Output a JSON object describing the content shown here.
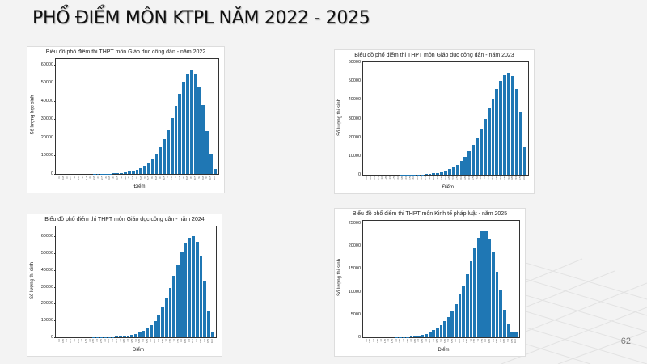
{
  "slide": {
    "title": "PHỔ ĐIỂM MÔN KTPL NĂM 2022 - 2025",
    "page_number": "62"
  },
  "chart_data": [
    {
      "type": "bar",
      "title": "Biểu đồ phổ điểm thi THPT môn Giáo dục công dân - năm 2022",
      "xlabel": "Điểm",
      "ylabel": "Số lượng học sinh",
      "ylim": [
        0,
        63000
      ],
      "yticks": [
        0,
        10000,
        20000,
        30000,
        40000,
        50000,
        60000
      ],
      "color": "#1f77b4",
      "categories": [
        "0.0",
        "0.25",
        "0.5",
        "0.75",
        "1.0",
        "1.25",
        "1.5",
        "1.75",
        "2.0",
        "2.25",
        "2.5",
        "2.75",
        "3.0",
        "3.25",
        "3.5",
        "3.75",
        "4.0",
        "4.25",
        "4.5",
        "4.75",
        "5.0",
        "5.25",
        "5.5",
        "5.75",
        "6.0",
        "6.25",
        "6.5",
        "6.75",
        "7.0",
        "7.25",
        "7.5",
        "7.75",
        "8.0",
        "8.25",
        "8.5",
        "8.75",
        "9.0",
        "9.25",
        "9.5",
        "9.75",
        "10.0"
      ],
      "values": [
        20,
        10,
        10,
        10,
        10,
        10,
        10,
        20,
        30,
        40,
        60,
        80,
        120,
        180,
        260,
        380,
        550,
        800,
        1200,
        1700,
        2300,
        3200,
        4500,
        6200,
        8200,
        11000,
        14800,
        19100,
        24000,
        30500,
        37200,
        44100,
        50800,
        55200,
        57400,
        55100,
        48000,
        37700,
        23700,
        11300,
        2800
      ]
    },
    {
      "type": "bar",
      "title": "Biểu đồ phổ điểm thi THPT môn Giáo dục công dân - năm 2023",
      "xlabel": "Điểm",
      "ylabel": "Số lượng thí sinh",
      "ylim": [
        0,
        60000
      ],
      "yticks": [
        0,
        10000,
        20000,
        30000,
        40000,
        50000,
        60000
      ],
      "color": "#1f77b4",
      "categories": [
        "0.0",
        "0.25",
        "0.5",
        "0.75",
        "1.0",
        "1.25",
        "1.5",
        "1.75",
        "2.0",
        "2.25",
        "2.5",
        "2.75",
        "3.0",
        "3.25",
        "3.5",
        "3.75",
        "4.0",
        "4.25",
        "4.5",
        "4.75",
        "5.0",
        "5.25",
        "5.5",
        "5.75",
        "6.0",
        "6.25",
        "6.5",
        "6.75",
        "7.0",
        "7.25",
        "7.5",
        "7.75",
        "8.0",
        "8.25",
        "8.5",
        "8.75",
        "9.0",
        "9.25",
        "9.5",
        "9.75",
        "10.0"
      ],
      "values": [
        20,
        10,
        10,
        10,
        10,
        10,
        10,
        20,
        30,
        40,
        50,
        70,
        100,
        150,
        220,
        330,
        480,
        700,
        1000,
        1500,
        2100,
        2900,
        4000,
        5400,
        7200,
        9400,
        12400,
        15800,
        20000,
        24800,
        29900,
        35500,
        40600,
        45800,
        50000,
        53200,
        54500,
        52500,
        45600,
        33200,
        14600
      ]
    },
    {
      "type": "bar",
      "title": "Biểu đồ phổ điểm thi THPT môn Giáo dục công dân - năm 2024",
      "xlabel": "Điểm",
      "ylabel": "Số lượng thí sinh",
      "ylim": [
        0,
        66000
      ],
      "yticks": [
        0,
        10000,
        20000,
        30000,
        40000,
        50000,
        60000
      ],
      "color": "#1f77b4",
      "categories": [
        "0.0",
        "0.25",
        "0.5",
        "0.75",
        "1.0",
        "1.25",
        "1.5",
        "1.75",
        "2.0",
        "2.25",
        "2.5",
        "2.75",
        "3.0",
        "3.25",
        "3.5",
        "3.75",
        "4.0",
        "4.25",
        "4.5",
        "4.75",
        "5.0",
        "5.25",
        "5.5",
        "5.75",
        "6.0",
        "6.25",
        "6.5",
        "6.75",
        "7.0",
        "7.25",
        "7.5",
        "7.75",
        "8.0",
        "8.25",
        "8.5",
        "8.75",
        "9.0",
        "9.25",
        "9.5",
        "9.75",
        "10.0"
      ],
      "values": [
        20,
        10,
        10,
        10,
        10,
        10,
        10,
        20,
        30,
        40,
        50,
        70,
        100,
        150,
        220,
        320,
        460,
        660,
        950,
        1400,
        2000,
        2800,
        3900,
        5300,
        7200,
        9800,
        13500,
        17900,
        23300,
        29600,
        36500,
        43400,
        50600,
        56000,
        59100,
        60100,
        56900,
        48300,
        33500,
        16100,
        3500
      ]
    },
    {
      "type": "bar",
      "title": "Biểu đồ phổ điểm thi THPT môn Kinh tế pháp luật - năm 2025",
      "xlabel": "Điểm",
      "ylabel": "Số lượng thí sinh",
      "ylim": [
        0,
        25500
      ],
      "yticks": [
        0,
        5000,
        10000,
        15000,
        20000,
        25000
      ],
      "color": "#1f77b4",
      "categories": [
        "0.0",
        "0.25",
        "0.5",
        "0.75",
        "1.0",
        "1.25",
        "1.5",
        "1.75",
        "2.0",
        "2.25",
        "2.5",
        "2.75",
        "3.0",
        "3.25",
        "3.5",
        "3.75",
        "4.0",
        "4.25",
        "4.5",
        "4.75",
        "5.0",
        "5.25",
        "5.5",
        "5.75",
        "6.0",
        "6.25",
        "6.5",
        "6.75",
        "7.0",
        "7.25",
        "7.5",
        "7.75",
        "8.0",
        "8.25",
        "8.5",
        "8.75",
        "9.0",
        "9.25",
        "9.5",
        "9.75",
        "10.0"
      ],
      "values": [
        5,
        5,
        5,
        5,
        5,
        5,
        10,
        10,
        15,
        20,
        40,
        70,
        120,
        200,
        330,
        500,
        780,
        1150,
        1550,
        2050,
        2700,
        3500,
        4500,
        5700,
        7300,
        9400,
        11400,
        13900,
        16700,
        19600,
        21800,
        23200,
        23200,
        21600,
        18600,
        14400,
        10300,
        6100,
        2900,
        1300,
        1300
      ]
    }
  ]
}
